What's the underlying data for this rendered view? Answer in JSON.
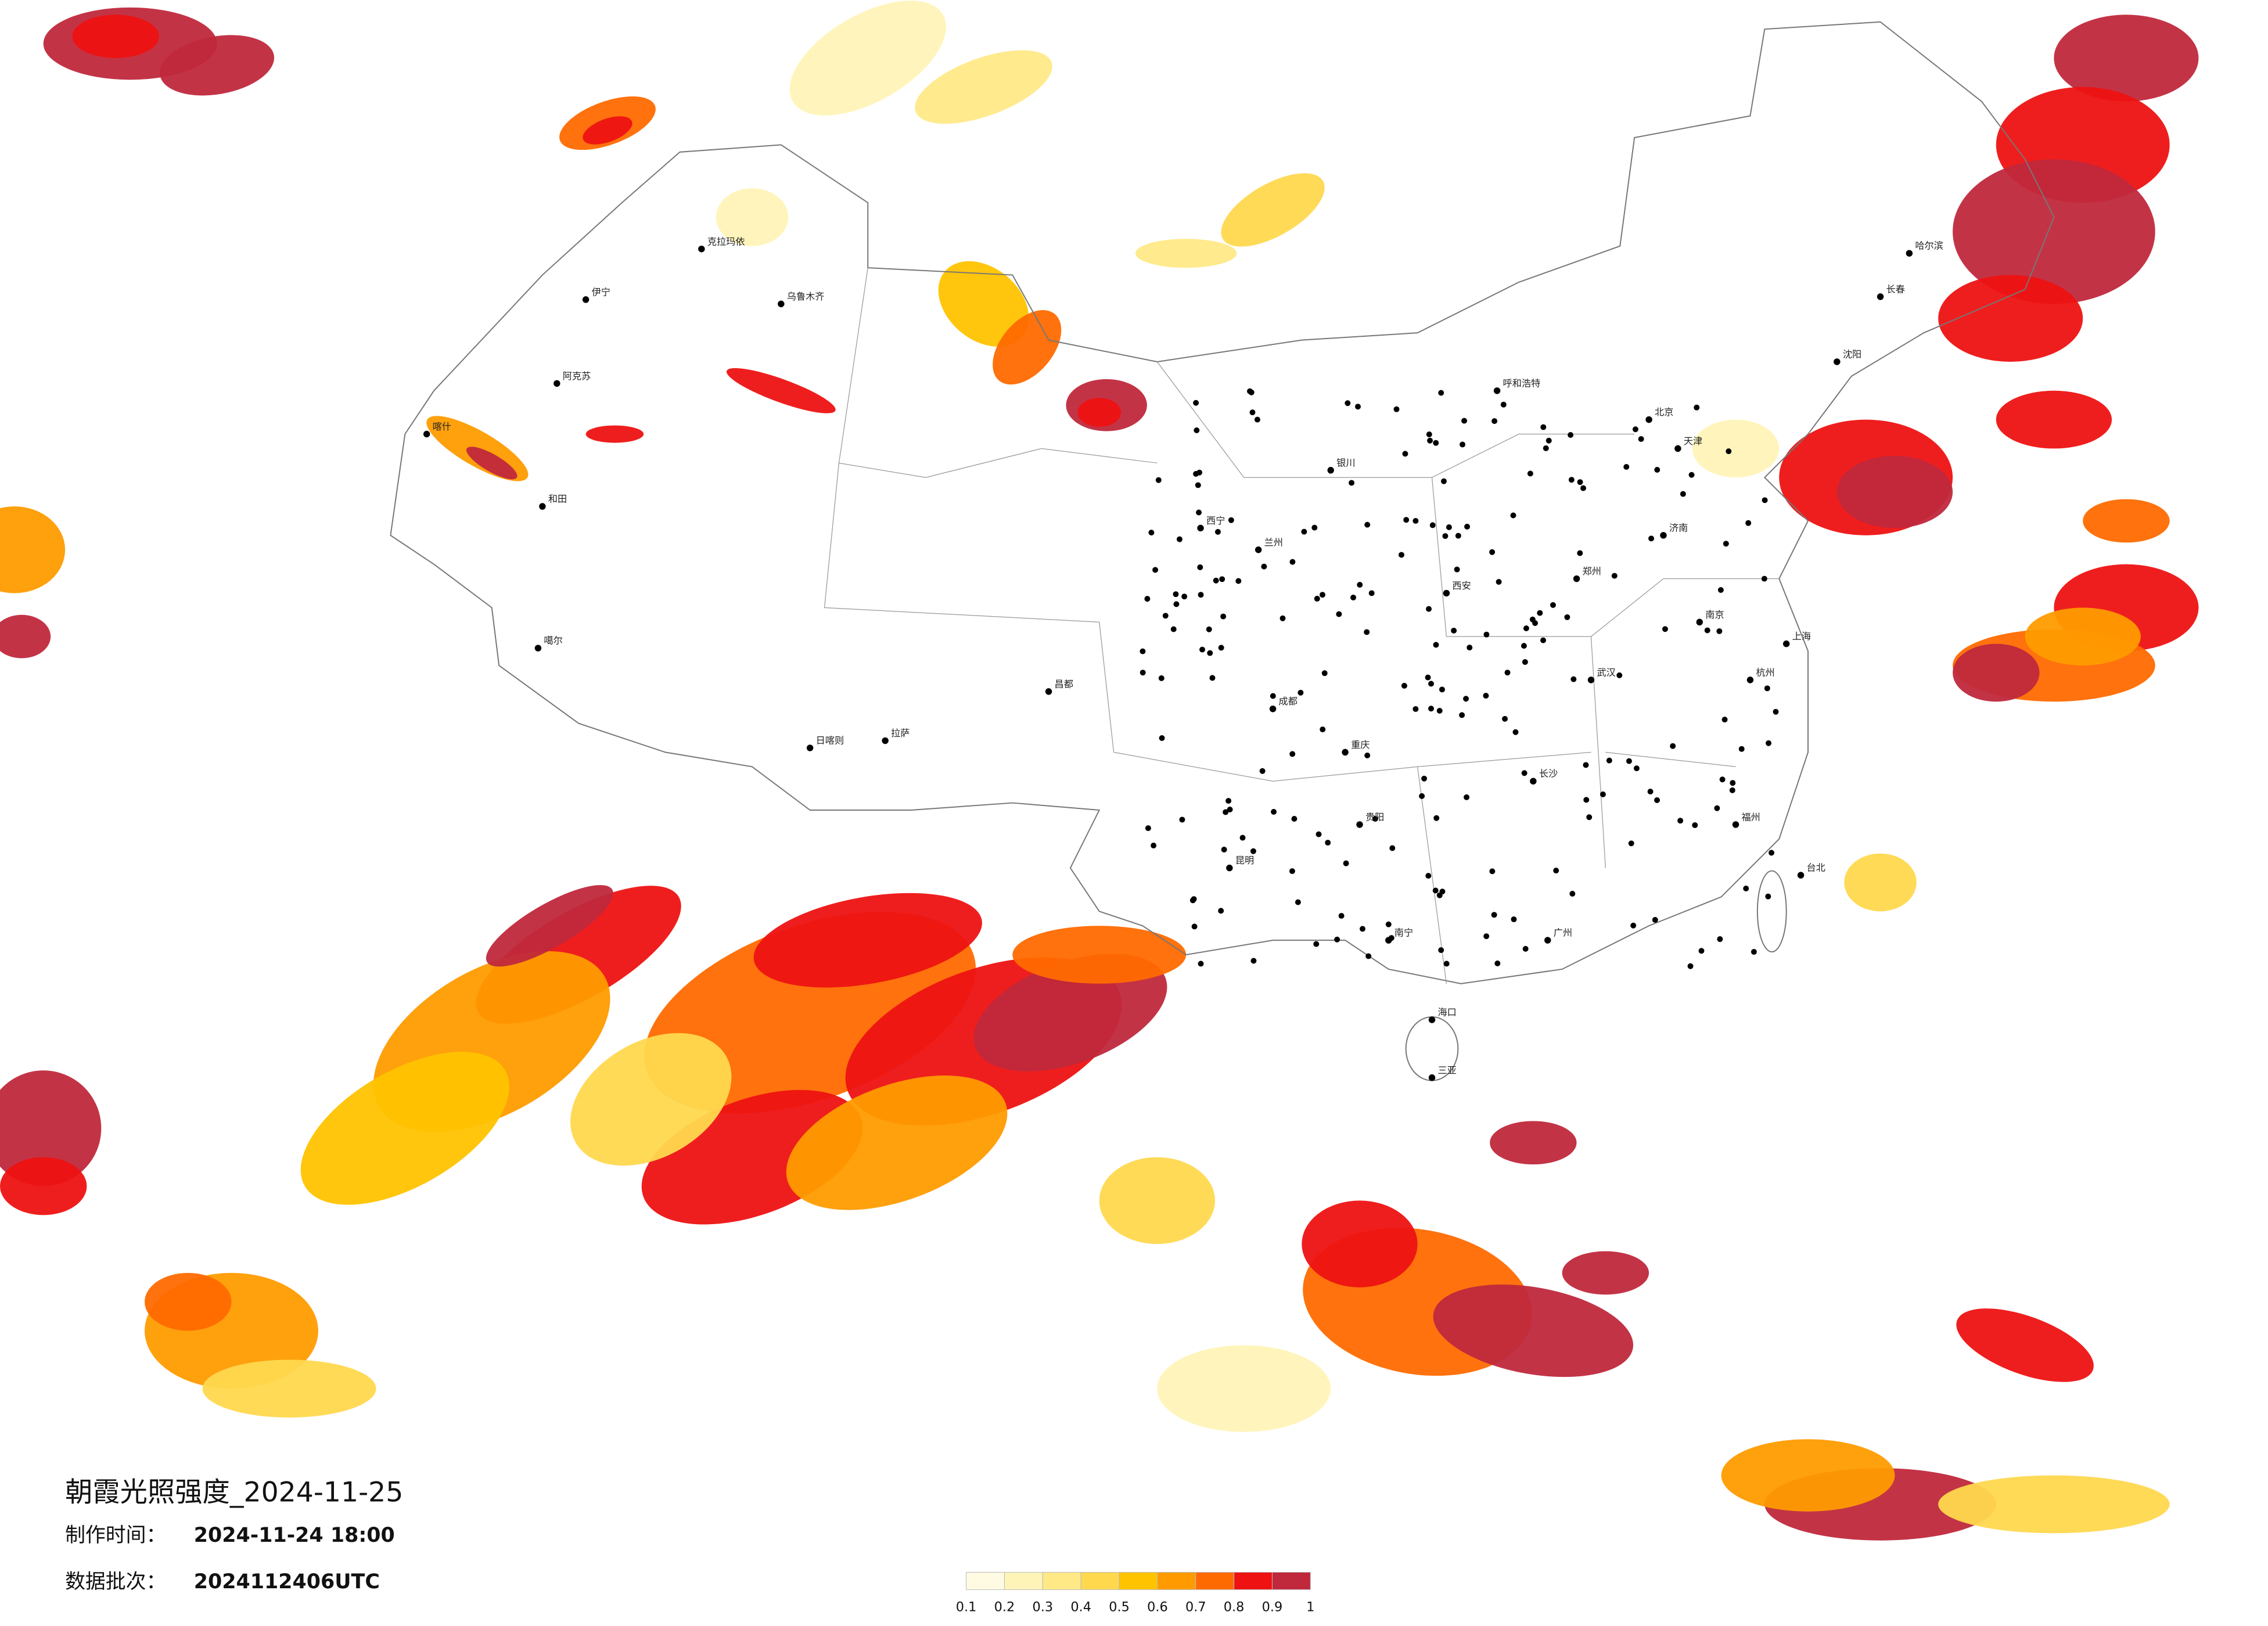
{
  "title": "朝霞光照强度_2024-11-25",
  "info": [
    {
      "label": "制作时间：",
      "value": "2024-11-24 18:00"
    },
    {
      "label": "数据批次：",
      "value": "2024112406UTC"
    }
  ],
  "legend": {
    "ticks": [
      0.1,
      0.2,
      0.3,
      0.4,
      0.5,
      0.6,
      0.7,
      0.8,
      0.9,
      1
    ],
    "colors": [
      "#fffbe2",
      "#fff4b8",
      "#ffe987",
      "#ffd84e",
      "#ffc300",
      "#ff9b00",
      "#ff6a00",
      "#ee1212",
      "#c0283c"
    ]
  },
  "cities": [
    "伊宁",
    "克拉玛依",
    "乌鲁木齐",
    "阿克苏",
    "喀什",
    "和田",
    "噶尔",
    "拉萨",
    "日喀则",
    "昌都",
    "西宁",
    "兰州",
    "银川",
    "呼和浩特",
    "北京",
    "天津",
    "沈阳",
    "长春",
    "哈尔滨",
    "济南",
    "郑州",
    "西安",
    "成都",
    "重庆",
    "武汉",
    "南京",
    "上海",
    "杭州",
    "长沙",
    "昆明",
    "贵阳",
    "南宁",
    "广州",
    "福州",
    "台北",
    "海口",
    "三亚"
  ]
}
